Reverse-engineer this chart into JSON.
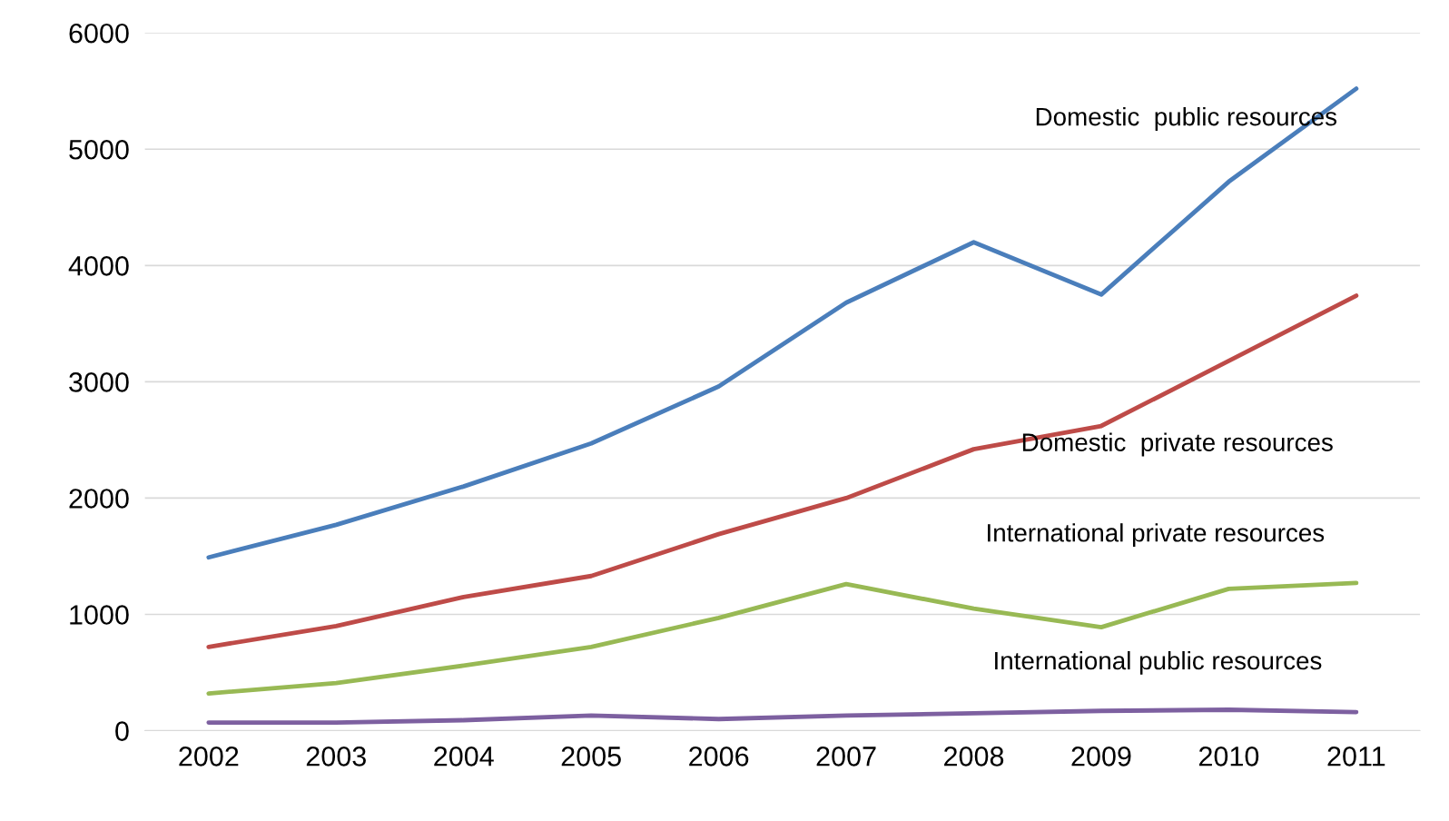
{
  "chart_data": {
    "type": "line",
    "categories": [
      "2002",
      "2003",
      "2004",
      "2005",
      "2006",
      "2007",
      "2008",
      "2009",
      "2010",
      "2011"
    ],
    "series": [
      {
        "name": "Domestic  public resources",
        "color": "#4a7ebb",
        "values": [
          1490,
          1770,
          2100,
          2470,
          2960,
          3680,
          4200,
          3750,
          4720,
          5520
        ]
      },
      {
        "name": "Domestic  private resources",
        "color": "#be4b48",
        "values": [
          720,
          900,
          1150,
          1330,
          1690,
          2000,
          2420,
          2620,
          3180,
          3740
        ]
      },
      {
        "name": "International private resources",
        "color": "#98b954",
        "values": [
          320,
          410,
          560,
          720,
          970,
          1260,
          1050,
          890,
          1220,
          1270
        ]
      },
      {
        "name": "International public resources",
        "color": "#7d60a0",
        "values": [
          70,
          70,
          90,
          130,
          100,
          130,
          150,
          170,
          180,
          160
        ]
      }
    ],
    "ylim": [
      0,
      6000
    ],
    "yticks": [
      0,
      1000,
      2000,
      3000,
      4000,
      5000,
      6000
    ],
    "grid": "y",
    "marker": "none",
    "line_style": "solid",
    "legend": false
  }
}
